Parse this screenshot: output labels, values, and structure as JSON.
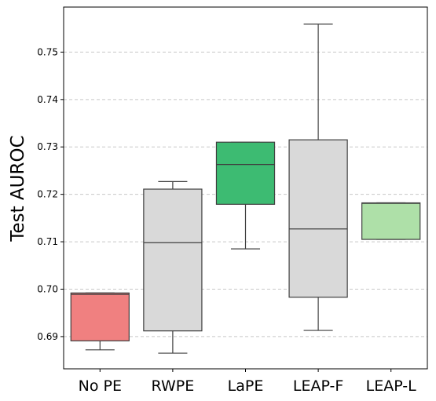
{
  "chart_data": {
    "type": "box",
    "title": "",
    "xlabel": "",
    "ylabel": "Test AUROC",
    "ylim": [
      0.6832,
      0.7595
    ],
    "yticks": [
      0.69,
      0.7,
      0.71,
      0.72,
      0.73,
      0.74,
      0.75
    ],
    "ytick_labels": [
      "0.69",
      "0.70",
      "0.71",
      "0.72",
      "0.73",
      "0.74",
      "0.75"
    ],
    "grid": "y-dashed",
    "categories": [
      "No PE",
      "RWPE",
      "LaPE",
      "LEAP-F",
      "LEAP-L"
    ],
    "boxes": [
      {
        "label": "No PE",
        "whislo": 0.6872,
        "q1": 0.6891,
        "med": 0.6989,
        "q3": 0.6992,
        "whishi": 0.6992,
        "color": "#f08080"
      },
      {
        "label": "RWPE",
        "whislo": 0.6865,
        "q1": 0.6912,
        "med": 0.7098,
        "q3": 0.7211,
        "whishi": 0.7227,
        "color": "#d9d9d9"
      },
      {
        "label": "LaPE",
        "whislo": 0.7085,
        "q1": 0.7179,
        "med": 0.7263,
        "q3": 0.731,
        "whishi": 0.731,
        "color": "#3dbb72"
      },
      {
        "label": "LEAP-F",
        "whislo": 0.6913,
        "q1": 0.6983,
        "med": 0.7127,
        "q3": 0.7315,
        "whishi": 0.7559,
        "color": "#d9d9d9"
      },
      {
        "label": "LEAP-L",
        "whislo": 0.7105,
        "q1": 0.7105,
        "med": 0.7181,
        "q3": 0.7182,
        "whishi": 0.7182,
        "color": "#aee0a8"
      }
    ]
  }
}
